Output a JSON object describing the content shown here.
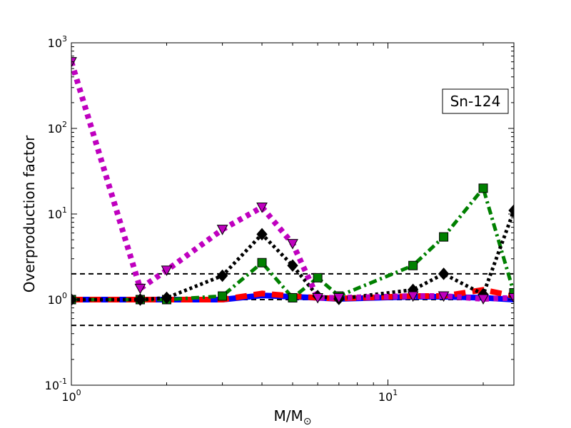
{
  "chart_data": {
    "type": "line",
    "title": "",
    "xlabel": "M/M",
    "xlabel_sub": "⊙",
    "ylabel": "Overproduction factor",
    "xscale": "log",
    "yscale": "log",
    "xlim": [
      1,
      25
    ],
    "ylim": [
      0.1,
      1000
    ],
    "grid": false,
    "x_ticks": [
      {
        "value": 1,
        "base": "10",
        "exp": "0"
      },
      {
        "value": 10,
        "base": "10",
        "exp": "1"
      }
    ],
    "y_ticks": [
      {
        "value": 0.1,
        "base": "10",
        "exp": "-1"
      },
      {
        "value": 1,
        "base": "10",
        "exp": "0"
      },
      {
        "value": 10,
        "base": "10",
        "exp": "1"
      },
      {
        "value": 100,
        "base": "10",
        "exp": "2"
      },
      {
        "value": 1000,
        "base": "10",
        "exp": "3"
      }
    ],
    "annotation": {
      "text": "Sn-124",
      "placement": "top-right"
    },
    "reference_lines": [
      {
        "y": 2,
        "color": "#000000",
        "style": "dashed"
      },
      {
        "y": 1,
        "color": "#000000",
        "style": "dashed"
      },
      {
        "y": 0.5,
        "color": "#000000",
        "style": "dashed"
      }
    ],
    "series": [
      {
        "color": "#0000ff",
        "style": "solid",
        "marker": "none",
        "width": 8,
        "x": [
          1,
          1.65,
          2,
          3,
          4,
          5,
          6,
          7,
          12,
          15,
          20,
          25
        ],
        "y": [
          1.0,
          1.0,
          1.0,
          1.0,
          1.12,
          1.08,
          1.05,
          1.02,
          1.08,
          1.08,
          1.05,
          1.0
        ]
      },
      {
        "color": "#ff0000",
        "style": "dashed",
        "marker": "none",
        "width": 8,
        "x": [
          1,
          1.65,
          2,
          3,
          4,
          5,
          6,
          7,
          12,
          15,
          20,
          25
        ],
        "y": [
          1.0,
          1.0,
          1.0,
          1.0,
          1.18,
          1.1,
          1.05,
          1.03,
          1.1,
          1.1,
          1.3,
          1.1
        ]
      },
      {
        "color": "#008000",
        "style": "dashdot",
        "marker": "square",
        "width": 5,
        "x": [
          1,
          1.65,
          2,
          3,
          4,
          5,
          6,
          7,
          12,
          15,
          20,
          25
        ],
        "y": [
          1.0,
          1.0,
          1.0,
          1.1,
          2.7,
          1.05,
          1.8,
          1.1,
          2.5,
          5.4,
          20.0,
          1.2
        ]
      },
      {
        "color": "#000000",
        "style": "dotted",
        "marker": "diamond",
        "width": 5,
        "x": [
          1,
          1.65,
          2,
          3,
          4,
          5,
          6,
          7,
          12,
          15,
          20,
          25
        ],
        "y": [
          1.0,
          1.0,
          1.05,
          1.9,
          5.8,
          2.5,
          1.1,
          1.02,
          1.3,
          2.0,
          1.15,
          11.0
        ]
      },
      {
        "color": "#bf00bf",
        "style": "dotted",
        "marker": "triangle-down",
        "width": 8,
        "x": [
          1,
          1.65,
          2,
          3,
          4,
          5,
          6,
          7,
          12,
          15,
          20,
          25
        ],
        "y": [
          600,
          1.35,
          2.2,
          6.6,
          12.0,
          4.5,
          1.05,
          1.05,
          1.1,
          1.1,
          1.02,
          1.05
        ]
      }
    ]
  }
}
